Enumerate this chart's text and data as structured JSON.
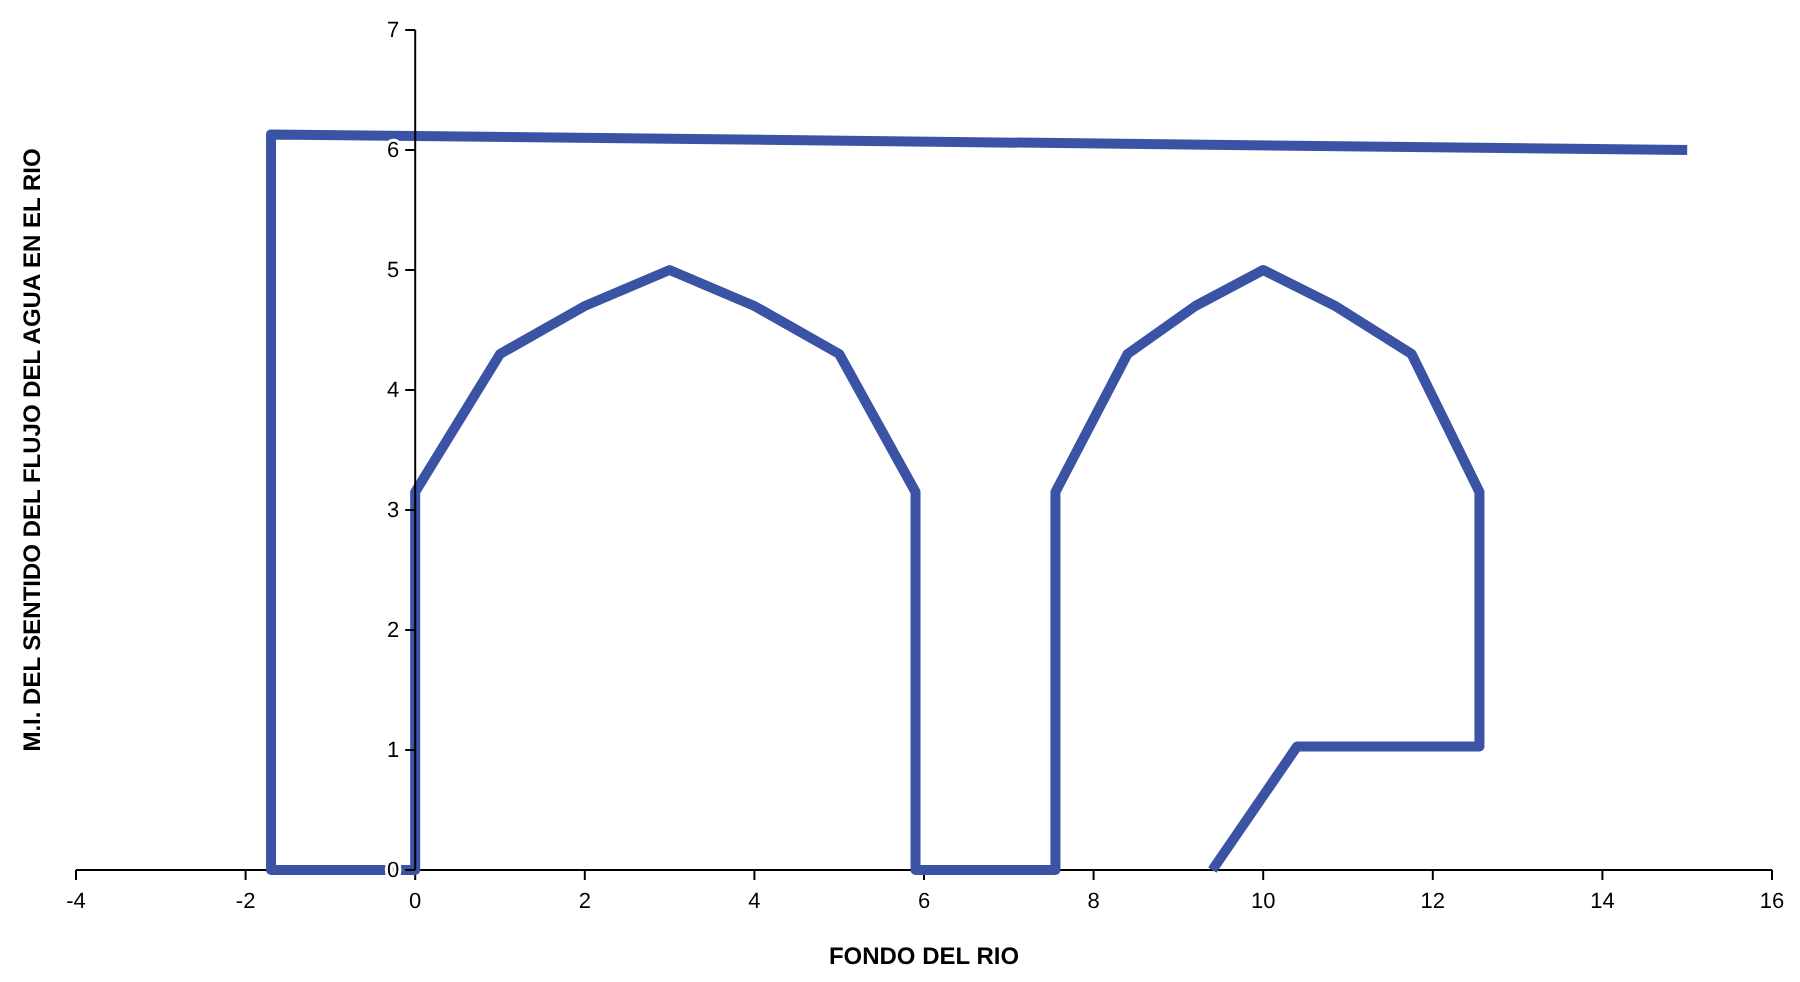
{
  "chart_data": {
    "type": "line",
    "xlabel": "FONDO DEL RIO",
    "ylabel": "M.I. DEL SENTIDO DEL FLUJO DEL AGUA EN EL RIO",
    "x": [
      15,
      -1.7,
      -1.7,
      0,
      0,
      1,
      2,
      3,
      4,
      5,
      5.9,
      5.9,
      7.55,
      7.55,
      8.4,
      9.2,
      10,
      10.85,
      11.75,
      12.55,
      12.55,
      10.4,
      9.4
    ],
    "series": [
      {
        "color": "#3a53a4",
        "values": [
          6.0,
          6.13,
          0,
          0,
          3.15,
          4.3,
          4.7,
          5.0,
          4.7,
          4.3,
          3.15,
          0,
          0,
          3.15,
          4.3,
          4.7,
          5.0,
          4.7,
          4.3,
          3.15,
          1.03,
          1.03,
          0
        ]
      }
    ],
    "xlim": [
      -4,
      16
    ],
    "xticks": [
      -4,
      -2,
      0,
      2,
      4,
      6,
      8,
      10,
      12,
      14,
      16
    ],
    "ylim": [
      0,
      7
    ],
    "yticks": [
      0,
      1,
      2,
      3,
      4,
      5,
      6,
      7
    ]
  }
}
